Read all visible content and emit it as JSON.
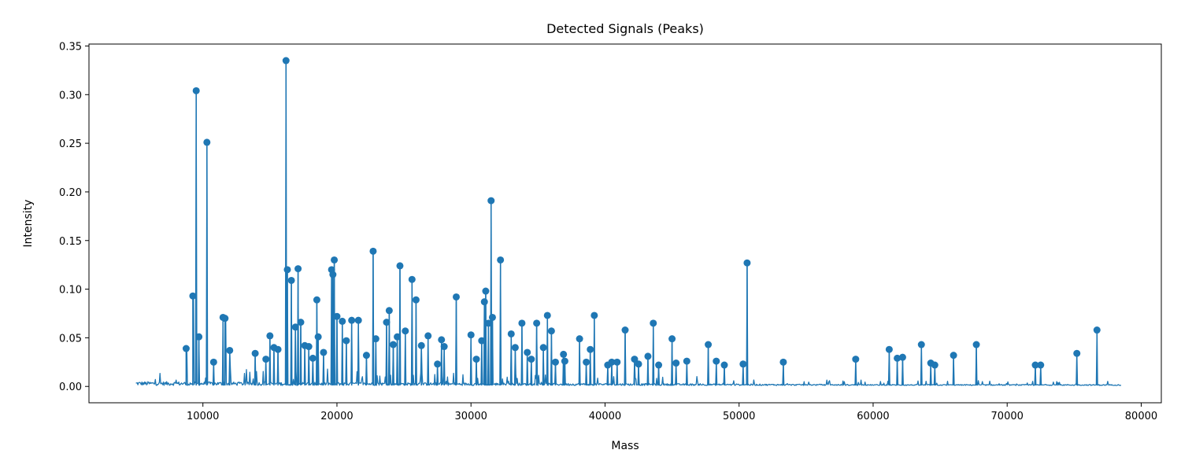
{
  "chart_data": {
    "type": "line",
    "title": "Detected Signals (Peaks)",
    "xlabel": "Mass",
    "ylabel": "Intensity",
    "xlim": [
      1500,
      81500
    ],
    "ylim": [
      -0.0168,
      0.352
    ],
    "xticks": [
      10000,
      20000,
      30000,
      40000,
      50000,
      60000,
      70000,
      80000
    ],
    "xtick_labels": [
      "10000",
      "20000",
      "30000",
      "40000",
      "50000",
      "60000",
      "70000",
      "80000"
    ],
    "yticks": [
      0.0,
      0.05,
      0.1,
      0.15,
      0.2,
      0.25,
      0.3,
      0.35
    ],
    "ytick_labels": [
      "0.00",
      "0.05",
      "0.10",
      "0.15",
      "0.20",
      "0.25",
      "0.30",
      "0.35"
    ],
    "grid": false,
    "legend": "none",
    "color": "#1f77b4",
    "signal_range": [
      5000,
      78500
    ],
    "series": [
      {
        "kind": "peaks",
        "x": [
          8750,
          9250,
          9500,
          9700,
          10300,
          10800,
          11500,
          11650,
          12000,
          13900,
          14700,
          15000,
          15300,
          15600,
          16200,
          16300,
          16600,
          16900,
          17100,
          17300,
          17600,
          17900,
          18200,
          18500,
          18600,
          19000,
          19600,
          19700,
          19800,
          20000,
          20400,
          20700,
          21100,
          21600,
          22200,
          22700,
          22900,
          23700,
          23900,
          24200,
          24500,
          24700,
          25100,
          25600,
          25900,
          26300,
          26800,
          27500,
          27800,
          28000,
          28900,
          30000,
          30400,
          30800,
          31000,
          31100,
          31300,
          31500,
          31600,
          32200,
          33000,
          33300,
          33800,
          34200,
          34500,
          34900,
          35400,
          35700,
          36000,
          36300,
          36900,
          37000,
          38100,
          38600,
          38900,
          39200,
          40200,
          40500,
          40900,
          41500,
          42200,
          42500,
          43200,
          43600,
          44000,
          45000,
          45300,
          46100,
          47700,
          48300,
          48900,
          50300,
          50600,
          53300,
          58700,
          61200,
          61800,
          62200,
          63600,
          64300,
          64600,
          66000,
          67700,
          72100,
          72500,
          75200,
          76700
        ],
        "y": [
          0.039,
          0.093,
          0.304,
          0.051,
          0.251,
          0.025,
          0.071,
          0.07,
          0.037,
          0.034,
          0.028,
          0.052,
          0.04,
          0.038,
          0.335,
          0.12,
          0.109,
          0.061,
          0.121,
          0.066,
          0.042,
          0.041,
          0.029,
          0.089,
          0.051,
          0.035,
          0.12,
          0.115,
          0.13,
          0.072,
          0.067,
          0.047,
          0.068,
          0.068,
          0.032,
          0.139,
          0.049,
          0.066,
          0.078,
          0.043,
          0.051,
          0.124,
          0.057,
          0.11,
          0.089,
          0.042,
          0.052,
          0.023,
          0.048,
          0.041,
          0.092,
          0.053,
          0.028,
          0.047,
          0.087,
          0.098,
          0.065,
          0.191,
          0.071,
          0.13,
          0.054,
          0.04,
          0.065,
          0.035,
          0.028,
          0.065,
          0.04,
          0.073,
          0.057,
          0.025,
          0.033,
          0.026,
          0.049,
          0.025,
          0.038,
          0.073,
          0.022,
          0.025,
          0.025,
          0.058,
          0.028,
          0.023,
          0.031,
          0.065,
          0.022,
          0.049,
          0.024,
          0.026,
          0.043,
          0.026,
          0.022,
          0.023,
          0.127,
          0.025,
          0.028,
          0.038,
          0.029,
          0.03,
          0.043,
          0.024,
          0.022,
          0.032,
          0.043,
          0.022,
          0.022,
          0.034,
          0.058
        ]
      }
    ]
  }
}
